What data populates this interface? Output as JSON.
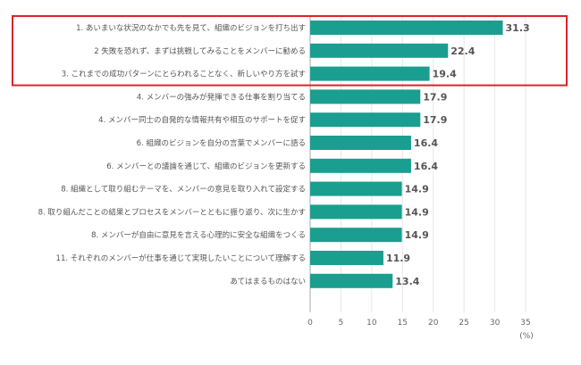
{
  "chart_data": {
    "type": "bar",
    "orientation": "horizontal",
    "categories": [
      "1. あいまいな状況のなかでも先を見て、組織のビジョンを打ち出す",
      "2 失敗を恐れず、まずは挑戦してみることをメンバーに勧める",
      "3. これまでの成功パターンにとらわれることなく、新しいやり方を試す",
      "4. メンバーの強みが発揮できる仕事を割り当てる",
      "4. メンバー同士の自発的な情報共有や相互のサポートを促す",
      "6. 組織のビジョンを自分の言葉でメンバーに語る",
      "6. メンバーとの議論を通じて、組織のビジョンを更新する",
      "8. 組織として取り組むテーマを、メンバーの意見を取り入れて設定する",
      "8. 取り組んだことの結果とプロセスをメンバーとともに振り返り、次に生かす",
      "8. メンバーが自由に意見を言える心理的に安全な組織をつくる",
      "11. それぞれのメンバーが仕事を通じて実現したいことについて理解する",
      "あてはまるものはない"
    ],
    "values": [
      31.3,
      22.4,
      19.4,
      17.9,
      17.9,
      16.4,
      16.4,
      14.9,
      14.9,
      14.9,
      11.9,
      13.4
    ],
    "value_labels": [
      "31.3",
      "22.4",
      "19.4",
      "17.9",
      "17.9",
      "16.4",
      "16.4",
      "14.9",
      "14.9",
      "14.9",
      "11.9",
      "13.4"
    ],
    "xlim": [
      0,
      35
    ],
    "x_ticks": [
      "0",
      "5",
      "10",
      "15",
      "20",
      "25",
      "30",
      "35"
    ],
    "unit": "(%)",
    "grid": true,
    "highlight_categories": [
      0,
      1,
      2
    ]
  },
  "colors": {
    "bar": "#1a9e8f",
    "highlight_box": "#d9242c",
    "grid": "#e6e6e6",
    "axis": "#aaaaaa",
    "text": "#555555"
  }
}
